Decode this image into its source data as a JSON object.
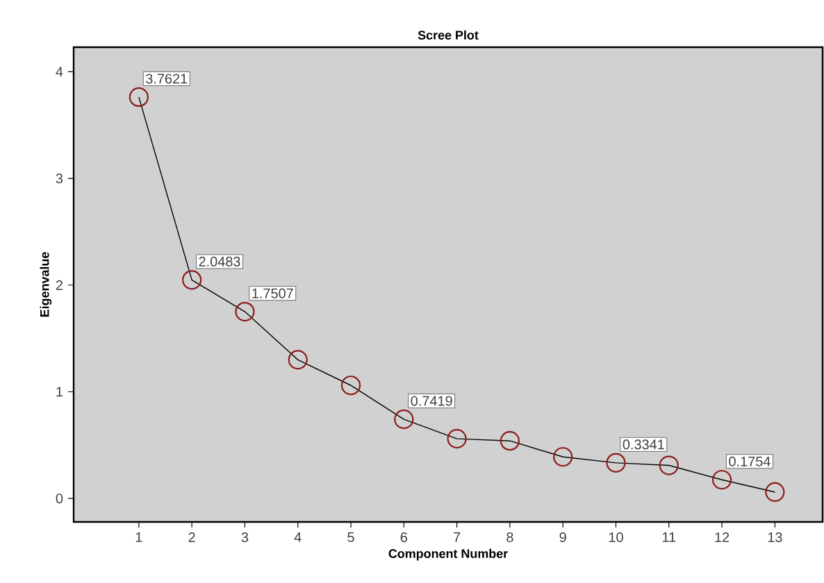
{
  "chart_data": {
    "type": "line",
    "title": "Scree Plot",
    "xlabel": "Component Number",
    "ylabel": "Eigenvalue",
    "categories": [
      "1",
      "2",
      "3",
      "4",
      "5",
      "6",
      "7",
      "8",
      "9",
      "10",
      "11",
      "12",
      "13"
    ],
    "series": [
      {
        "color": "#8b1a1a",
        "values": [
          3.7621,
          2.0483,
          1.7507,
          1.3,
          1.06,
          0.7419,
          0.56,
          0.54,
          0.39,
          0.3341,
          0.31,
          0.1754,
          0.06
        ],
        "value_labels": [
          "3.7621",
          "2.0483",
          "1.7507",
          null,
          null,
          "0.7419",
          null,
          null,
          null,
          "0.3341",
          null,
          "0.1754",
          null
        ]
      }
    ],
    "marker": "circle",
    "line_style": "solid",
    "grid": false,
    "ylim": [
      -0.22,
      4.23
    ],
    "yticks": [
      0,
      1,
      2,
      3,
      4
    ]
  }
}
